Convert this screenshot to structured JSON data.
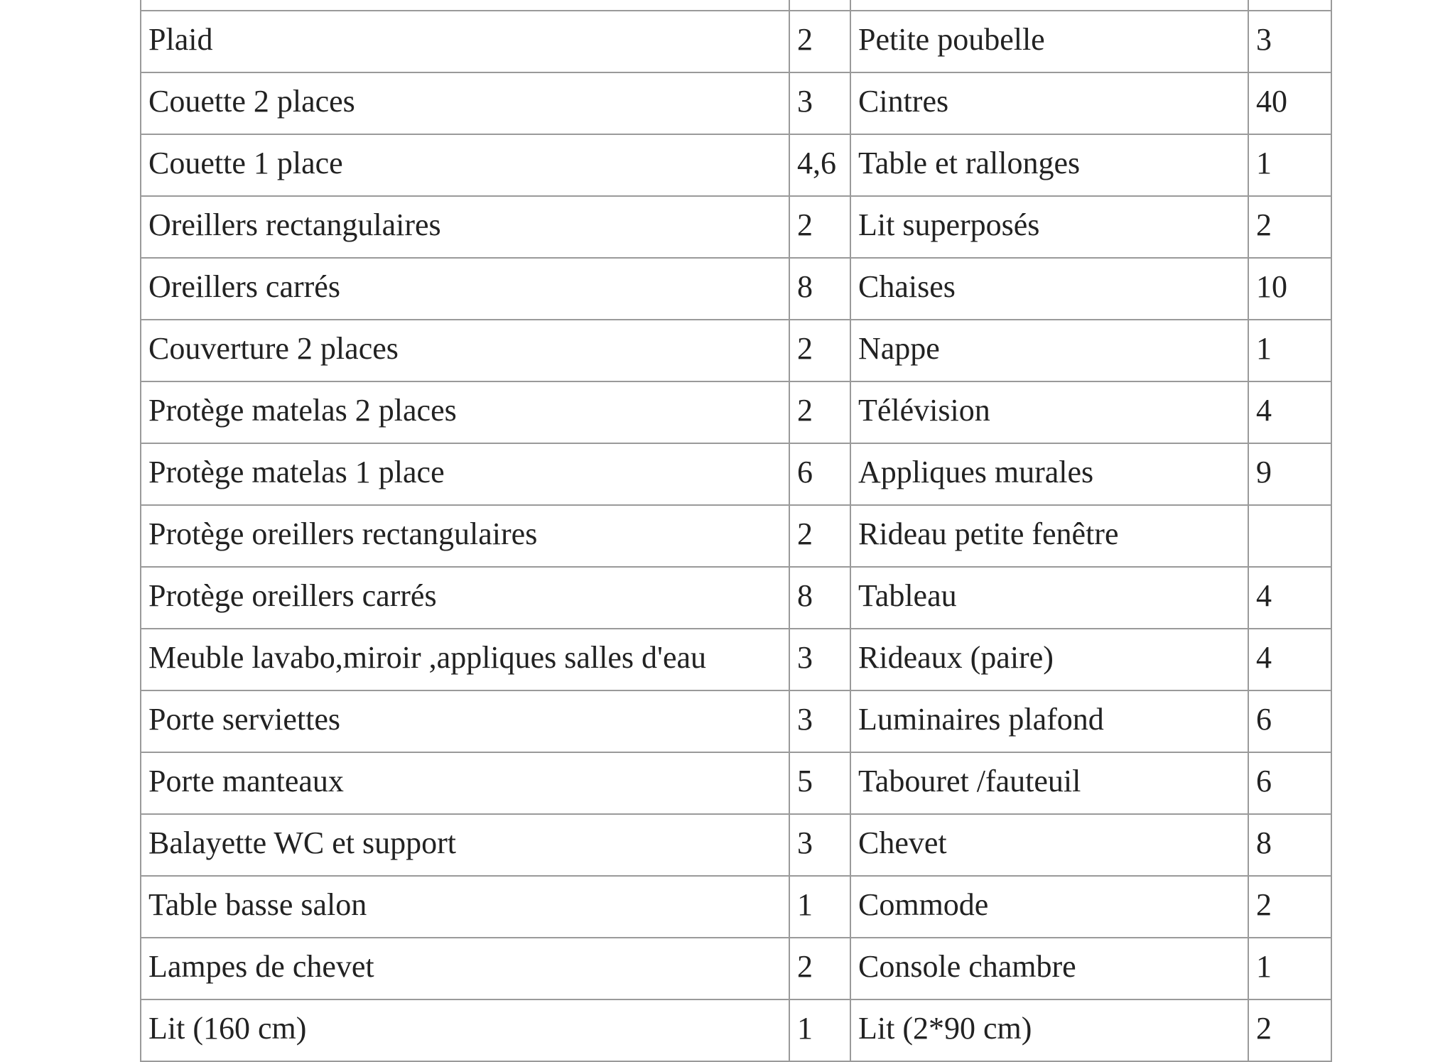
{
  "table": {
    "rows": [
      [
        "Plaid",
        "2",
        "Petite poubelle",
        "3"
      ],
      [
        "Couette 2 places",
        "3",
        "Cintres",
        "40"
      ],
      [
        "Couette 1 place",
        "4,6",
        "Table et rallonges",
        "1"
      ],
      [
        "Oreillers rectangulaires",
        "2",
        "Lit superposés",
        "2"
      ],
      [
        "Oreillers carrés",
        "8",
        "Chaises",
        "10"
      ],
      [
        "Couverture 2 places",
        "2",
        "Nappe",
        "1"
      ],
      [
        "Protège matelas 2 places",
        "2",
        "Télévision",
        "4"
      ],
      [
        "Protège matelas 1 place",
        "6",
        "Appliques murales",
        "9"
      ],
      [
        "Protège oreillers rectangulaires",
        "2",
        "Rideau petite fenêtre",
        null
      ],
      [
        "Protège oreillers carrés",
        "8",
        "Tableau",
        "4"
      ],
      [
        "Meuble lavabo,miroir ,appliques salles d'eau",
        "3",
        "Rideaux (paire)",
        "4"
      ],
      [
        "Porte serviettes",
        "3",
        "Luminaires plafond",
        "6"
      ],
      [
        "Porte manteaux",
        "5",
        "Tabouret /fauteuil",
        "6"
      ],
      [
        "Balayette WC et support",
        "3",
        "Chevet",
        "8"
      ],
      [
        "Table basse salon",
        "1",
        "Commode",
        "2"
      ],
      [
        "Lampes de chevet",
        "2",
        "Console chambre",
        "1"
      ],
      [
        "Lit (160 cm)",
        "1",
        "Lit (2*90 cm)",
        "2"
      ]
    ]
  }
}
